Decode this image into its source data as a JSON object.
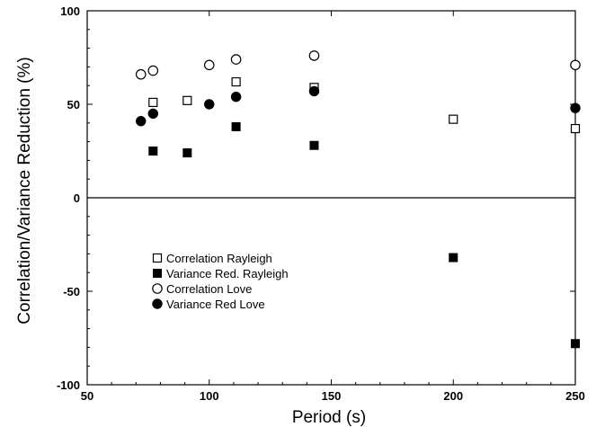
{
  "chart_data": {
    "type": "scatter",
    "title": "",
    "xlabel": "Period (s)",
    "ylabel": "Correlation/Variance Reduction (%)",
    "xlim": [
      50,
      250
    ],
    "ylim": [
      -100,
      100
    ],
    "xticks": [
      50,
      100,
      150,
      200,
      250
    ],
    "yticks": [
      -100,
      -50,
      0,
      50,
      100
    ],
    "xtick_labels": [
      "50",
      "100",
      "150",
      "200",
      "250"
    ],
    "ytick_labels": [
      "-100",
      "-50",
      "0",
      "50",
      "100"
    ],
    "grid": false,
    "zero_line": true,
    "legend_position": "bottom-left",
    "series": [
      {
        "name": "Correlation Rayleigh",
        "marker": "open-square",
        "color": "#000000",
        "points": [
          [
            77,
            51
          ],
          [
            91,
            52
          ],
          [
            111,
            62
          ],
          [
            143,
            59
          ],
          [
            200,
            42
          ],
          [
            250,
            37
          ]
        ]
      },
      {
        "name": "Variance Red. Rayleigh",
        "marker": "filled-square",
        "color": "#000000",
        "points": [
          [
            77,
            25
          ],
          [
            91,
            24
          ],
          [
            111,
            38
          ],
          [
            143,
            28
          ],
          [
            200,
            -32
          ],
          [
            250,
            -78
          ]
        ]
      },
      {
        "name": "Correlation Love",
        "marker": "open-circle",
        "color": "#000000",
        "points": [
          [
            72,
            66
          ],
          [
            77,
            68
          ],
          [
            100,
            71
          ],
          [
            111,
            74
          ],
          [
            143,
            76
          ],
          [
            250,
            71
          ]
        ]
      },
      {
        "name": "Variance Red  Love",
        "marker": "filled-circle",
        "color": "#000000",
        "points": [
          [
            72,
            41
          ],
          [
            77,
            45
          ],
          [
            100,
            50
          ],
          [
            111,
            54
          ],
          [
            143,
            57
          ],
          [
            250,
            48
          ]
        ]
      }
    ]
  }
}
